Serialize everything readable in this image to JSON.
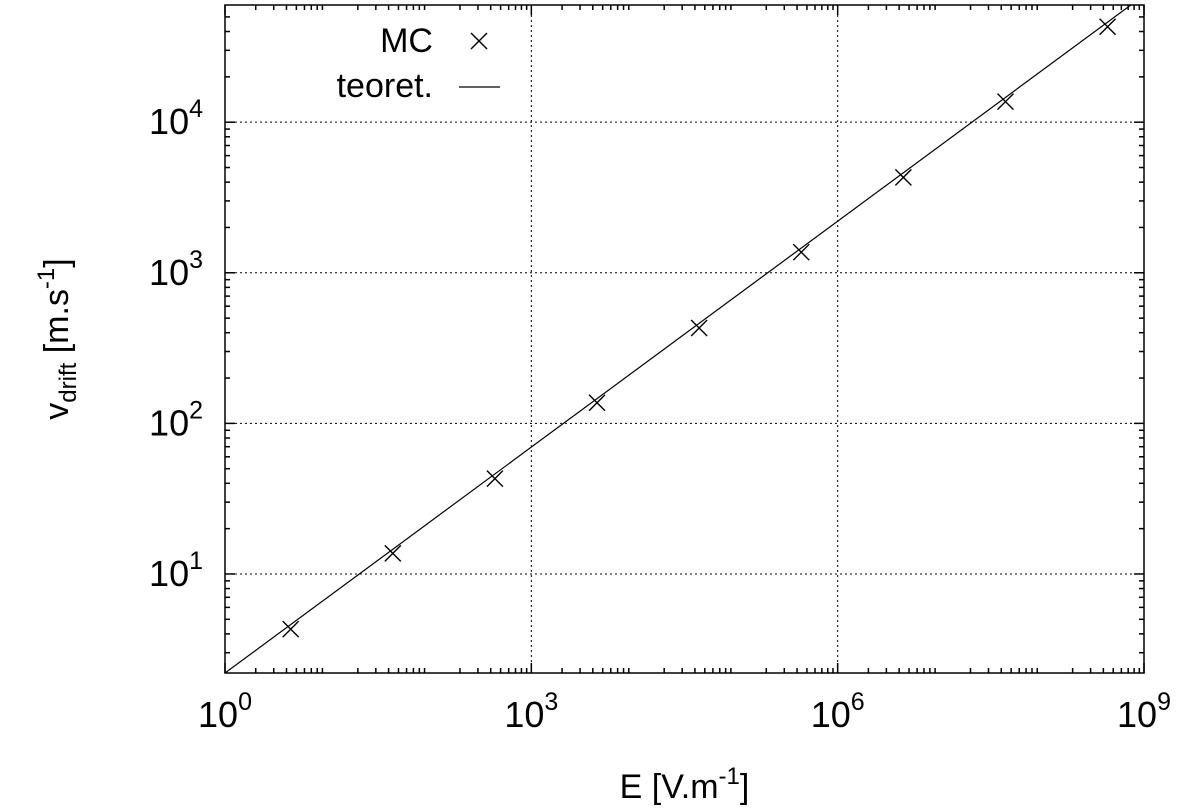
{
  "chart_data": {
    "type": "scatter",
    "x_scale": "log",
    "y_scale": "log",
    "xlim": [
      1,
      1000000000
    ],
    "ylim": [
      2.2,
      60000
    ],
    "grid": true,
    "legend_position": "top-left",
    "xlabel": {
      "text": "E [V.m",
      "sup": "-1",
      "suffix": "]"
    },
    "ylabel": {
      "base": "v",
      "sub": "drift",
      "text": " [m.s",
      "sup": "-1",
      "suffix": "]"
    },
    "x_ticks": [
      {
        "value": 1,
        "base": "10",
        "exp": "0"
      },
      {
        "value": 1000,
        "base": "10",
        "exp": "3"
      },
      {
        "value": 1000000,
        "base": "10",
        "exp": "6"
      },
      {
        "value": 1000000000,
        "base": "10",
        "exp": "9"
      }
    ],
    "y_ticks": [
      {
        "value": 10,
        "base": "10",
        "exp": "1"
      },
      {
        "value": 100,
        "base": "10",
        "exp": "2"
      },
      {
        "value": 1000,
        "base": "10",
        "exp": "3"
      },
      {
        "value": 10000,
        "base": "10",
        "exp": "4"
      }
    ],
    "series": [
      {
        "name": "MC",
        "style": "x-markers",
        "x": [
          4.4,
          44,
          440,
          4400,
          44000,
          440000,
          4400000,
          44000000,
          440000000
        ],
        "y": [
          4.3,
          13.7,
          43,
          137,
          430,
          1370,
          4300,
          13700,
          43000
        ]
      },
      {
        "name": "teoret.",
        "style": "line",
        "x": [
          1,
          1000000000
        ],
        "y": [
          2.2,
          69600
        ]
      }
    ]
  }
}
